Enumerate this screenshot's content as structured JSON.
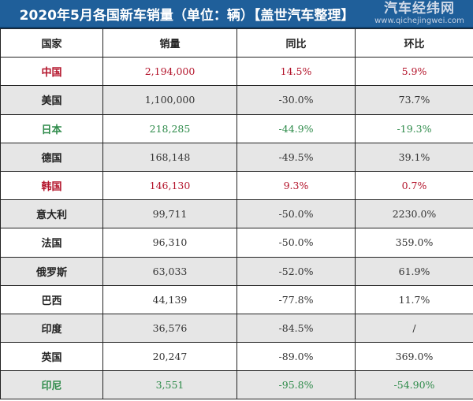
{
  "title": "2020年5月各国新车销量（单位：辆）【盖世汽车整理】",
  "headers": [
    "国家",
    "销量",
    "同比",
    "环比"
  ],
  "rows": [
    {
      "country": "中国",
      "sales": "2,194,000",
      "yoy": "14.5%",
      "mom": "5.9%",
      "color": "red"
    },
    {
      "country": "美国",
      "sales": "1,100,000",
      "yoy": "-30.0%",
      "mom": "73.7%",
      "color": "black"
    },
    {
      "country": "日本",
      "sales": "218,285",
      "yoy": "-44.9%",
      "mom": "-19.3%",
      "color": "green"
    },
    {
      "country": "德国",
      "sales": "168,148",
      "yoy": "-49.5%",
      "mom": "39.1%",
      "color": "black"
    },
    {
      "country": "韩国",
      "sales": "146,130",
      "yoy": "9.3%",
      "mom": "0.7%",
      "color": "red"
    },
    {
      "country": "意大利",
      "sales": "99,711",
      "yoy": "-50.0%",
      "mom": "2230.0%",
      "color": "black"
    },
    {
      "country": "法国",
      "sales": "96,310",
      "yoy": "-50.0%",
      "mom": "359.0%",
      "color": "black"
    },
    {
      "country": "俄罗斯",
      "sales": "63,033",
      "yoy": "-52.0%",
      "mom": "61.9%",
      "color": "black"
    },
    {
      "country": "巴西",
      "sales": "44,139",
      "yoy": "-77.8%",
      "mom": "11.7%",
      "color": "black"
    },
    {
      "country": "印度",
      "sales": "36,576",
      "yoy": "-84.5%",
      "mom": "/",
      "color": "black"
    },
    {
      "country": "英国",
      "sales": "20,247",
      "yoy": "-89.0%",
      "mom": "369.0%",
      "color": "black"
    },
    {
      "country": "印尼",
      "sales": "3,551",
      "yoy": "-95.8%",
      "mom": "-54.90%",
      "color": "green"
    }
  ],
  "colors": {
    "title_bg": "#1f5f9a",
    "positive": "#b3132a",
    "negative_highlight": "#2e8b4a",
    "stripe": "#e6e6e6"
  },
  "watermark": {
    "name": "汽车经纬网",
    "url": "www.qichejingwei.com"
  }
}
